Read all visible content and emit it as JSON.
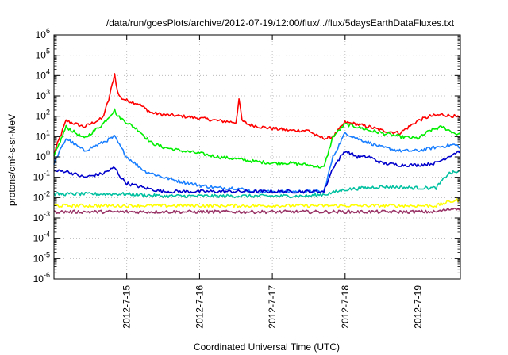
{
  "chart_data": {
    "type": "line",
    "title": "/data/run/goesPlots/archive/2012-07-19/12:00/flux/../flux/5daysEarthDataFluxes.txt",
    "xlabel": "Coordinated Universal Time (UTC)",
    "ylabel": "protons/cm²-s-sr-MeV",
    "yscale": "log",
    "ylim": [
      1e-06,
      1000000.0
    ],
    "xlim": [
      "2012-07-14 00:00",
      "2012-07-19 14:00"
    ],
    "grid": true,
    "legend": "none",
    "y_ticks": [
      {
        "value": 1e-06,
        "exp": "-6"
      },
      {
        "value": 1e-05,
        "exp": "-5"
      },
      {
        "value": 0.0001,
        "exp": "-4"
      },
      {
        "value": 0.001,
        "exp": "-3"
      },
      {
        "value": 0.01,
        "exp": "-2"
      },
      {
        "value": 0.1,
        "exp": "-1"
      },
      {
        "value": 1.0,
        "exp": "0"
      },
      {
        "value": 10.0,
        "exp": "1"
      },
      {
        "value": 100.0,
        "exp": "2"
      },
      {
        "value": 1000.0,
        "exp": "3"
      },
      {
        "value": 10000.0,
        "exp": "4"
      },
      {
        "value": 100000.0,
        "exp": "5"
      },
      {
        "value": 1000000.0,
        "exp": "6"
      }
    ],
    "y_tick_base": "10",
    "x_ticks": [
      {
        "x": "2012-07-15 00:00",
        "label": "2012-7-15"
      },
      {
        "x": "2012-07-16 00:00",
        "label": "2012-7-16"
      },
      {
        "x": "2012-07-17 00:00",
        "label": "2012-7-17"
      },
      {
        "x": "2012-07-18 00:00",
        "label": "2012-7-18"
      },
      {
        "x": "2012-07-19 00:00",
        "label": "2012-7-19"
      }
    ],
    "series": [
      {
        "color": "#ff0000",
        "x": [
          "2012-07-14 00:00",
          "2012-07-14 04:00",
          "2012-07-14 10:00",
          "2012-07-14 16:00",
          "2012-07-14 18:00",
          "2012-07-14 20:00",
          "2012-07-14 21:00",
          "2012-07-14 22:00",
          "2012-07-15 00:00",
          "2012-07-15 04:00",
          "2012-07-15 08:00",
          "2012-07-15 12:00",
          "2012-07-15 18:00",
          "2012-07-16 00:00",
          "2012-07-16 06:00",
          "2012-07-16 12:00",
          "2012-07-16 13:00",
          "2012-07-16 14:00",
          "2012-07-16 16:00",
          "2012-07-16 20:00",
          "2012-07-17 00:00",
          "2012-07-17 06:00",
          "2012-07-17 12:00",
          "2012-07-17 15:00",
          "2012-07-17 18:00",
          "2012-07-17 20:00",
          "2012-07-18 00:00",
          "2012-07-18 04:00",
          "2012-07-18 08:00",
          "2012-07-18 12:00",
          "2012-07-18 18:00",
          "2012-07-19 00:00",
          "2012-07-19 04:00",
          "2012-07-19 08:00",
          "2012-07-19 12:00",
          "2012-07-19 14:00"
        ],
        "y": [
          1.5,
          60,
          30,
          80,
          600,
          12000,
          1500,
          800,
          600,
          400,
          150,
          120,
          100,
          80,
          60,
          50,
          700,
          60,
          40,
          30,
          25,
          20,
          20,
          10,
          8,
          10,
          50,
          40,
          30,
          20,
          15,
          60,
          100,
          120,
          100,
          80
        ]
      },
      {
        "color": "#00ee00",
        "x": [
          "2012-07-14 00:00",
          "2012-07-14 04:00",
          "2012-07-14 10:00",
          "2012-07-14 16:00",
          "2012-07-14 20:00",
          "2012-07-14 21:00",
          "2012-07-14 22:00",
          "2012-07-15 00:00",
          "2012-07-15 04:00",
          "2012-07-15 08:00",
          "2012-07-15 12:00",
          "2012-07-15 18:00",
          "2012-07-16 00:00",
          "2012-07-16 06:00",
          "2012-07-16 12:00",
          "2012-07-16 18:00",
          "2012-07-17 00:00",
          "2012-07-17 06:00",
          "2012-07-17 12:00",
          "2012-07-17 17:00",
          "2012-07-17 20:00",
          "2012-07-18 00:00",
          "2012-07-18 04:00",
          "2012-07-18 08:00",
          "2012-07-18 12:00",
          "2012-07-18 18:00",
          "2012-07-19 00:00",
          "2012-07-19 04:00",
          "2012-07-19 08:00",
          "2012-07-19 12:00",
          "2012-07-19 14:00"
        ],
        "y": [
          1,
          30,
          8,
          40,
          200,
          100,
          80,
          50,
          20,
          5,
          3,
          2,
          1.5,
          1,
          0.8,
          0.6,
          0.5,
          0.5,
          0.4,
          0.3,
          10,
          40,
          30,
          20,
          15,
          10,
          8,
          20,
          30,
          15,
          12
        ]
      },
      {
        "color": "#1a7fff",
        "x": [
          "2012-07-14 00:00",
          "2012-07-14 04:00",
          "2012-07-14 10:00",
          "2012-07-14 16:00",
          "2012-07-14 20:00",
          "2012-07-14 22:00",
          "2012-07-15 00:00",
          "2012-07-15 06:00",
          "2012-07-15 12:00",
          "2012-07-15 18:00",
          "2012-07-16 00:00",
          "2012-07-16 06:00",
          "2012-07-16 12:00",
          "2012-07-16 18:00",
          "2012-07-17 00:00",
          "2012-07-17 06:00",
          "2012-07-17 12:00",
          "2012-07-17 17:00",
          "2012-07-17 20:00",
          "2012-07-18 00:00",
          "2012-07-18 04:00",
          "2012-07-18 08:00",
          "2012-07-18 12:00",
          "2012-07-18 18:00",
          "2012-07-19 00:00",
          "2012-07-19 06:00",
          "2012-07-19 12:00",
          "2012-07-19 14:00"
        ],
        "y": [
          0.5,
          8,
          2,
          5,
          10,
          3,
          1,
          0.2,
          0.1,
          0.06,
          0.04,
          0.03,
          0.03,
          0.02,
          0.02,
          0.02,
          0.02,
          0.02,
          1,
          15,
          8,
          5,
          3,
          2,
          2,
          3,
          4,
          3
        ]
      },
      {
        "color": "#0000cc",
        "x": [
          "2012-07-14 00:00",
          "2012-07-14 04:00",
          "2012-07-14 10:00",
          "2012-07-14 16:00",
          "2012-07-14 20:00",
          "2012-07-14 22:00",
          "2012-07-15 00:00",
          "2012-07-15 06:00",
          "2012-07-15 12:00",
          "2012-07-15 18:00",
          "2012-07-16 00:00",
          "2012-07-16 12:00",
          "2012-07-17 00:00",
          "2012-07-17 12:00",
          "2012-07-17 17:00",
          "2012-07-17 20:00",
          "2012-07-18 00:00",
          "2012-07-18 04:00",
          "2012-07-18 08:00",
          "2012-07-18 12:00",
          "2012-07-18 18:00",
          "2012-07-19 00:00",
          "2012-07-19 06:00",
          "2012-07-19 12:00",
          "2012-07-19 14:00"
        ],
        "y": [
          0.2,
          0.2,
          0.1,
          0.15,
          0.3,
          0.1,
          0.05,
          0.03,
          0.02,
          0.02,
          0.02,
          0.02,
          0.02,
          0.02,
          0.02,
          0.3,
          2,
          1,
          1,
          0.5,
          0.4,
          0.4,
          0.5,
          1.5,
          2
        ]
      },
      {
        "color": "#00c0a0",
        "x": [
          "2012-07-14 00:00",
          "2012-07-14 12:00",
          "2012-07-15 00:00",
          "2012-07-15 12:00",
          "2012-07-16 00:00",
          "2012-07-16 12:00",
          "2012-07-17 00:00",
          "2012-07-17 12:00",
          "2012-07-17 18:00",
          "2012-07-18 00:00",
          "2012-07-18 12:00",
          "2012-07-19 00:00",
          "2012-07-19 06:00",
          "2012-07-19 10:00",
          "2012-07-19 14:00"
        ],
        "y": [
          0.015,
          0.015,
          0.015,
          0.012,
          0.012,
          0.012,
          0.012,
          0.012,
          0.015,
          0.025,
          0.035,
          0.03,
          0.03,
          0.15,
          0.2
        ]
      },
      {
        "color": "#ffff00",
        "x": [
          "2012-07-14 00:00",
          "2012-07-15 00:00",
          "2012-07-16 00:00",
          "2012-07-17 00:00",
          "2012-07-18 00:00",
          "2012-07-19 00:00",
          "2012-07-19 06:00",
          "2012-07-19 10:00",
          "2012-07-19 14:00"
        ],
        "y": [
          0.004,
          0.004,
          0.004,
          0.004,
          0.004,
          0.004,
          0.004,
          0.006,
          0.008
        ]
      },
      {
        "color": "#993366",
        "x": [
          "2012-07-14 00:00",
          "2012-07-15 00:00",
          "2012-07-16 00:00",
          "2012-07-17 00:00",
          "2012-07-18 00:00",
          "2012-07-19 00:00",
          "2012-07-19 06:00",
          "2012-07-19 12:00",
          "2012-07-19 14:00"
        ],
        "y": [
          0.002,
          0.002,
          0.002,
          0.002,
          0.002,
          0.002,
          0.002,
          0.003,
          0.003
        ]
      }
    ]
  }
}
